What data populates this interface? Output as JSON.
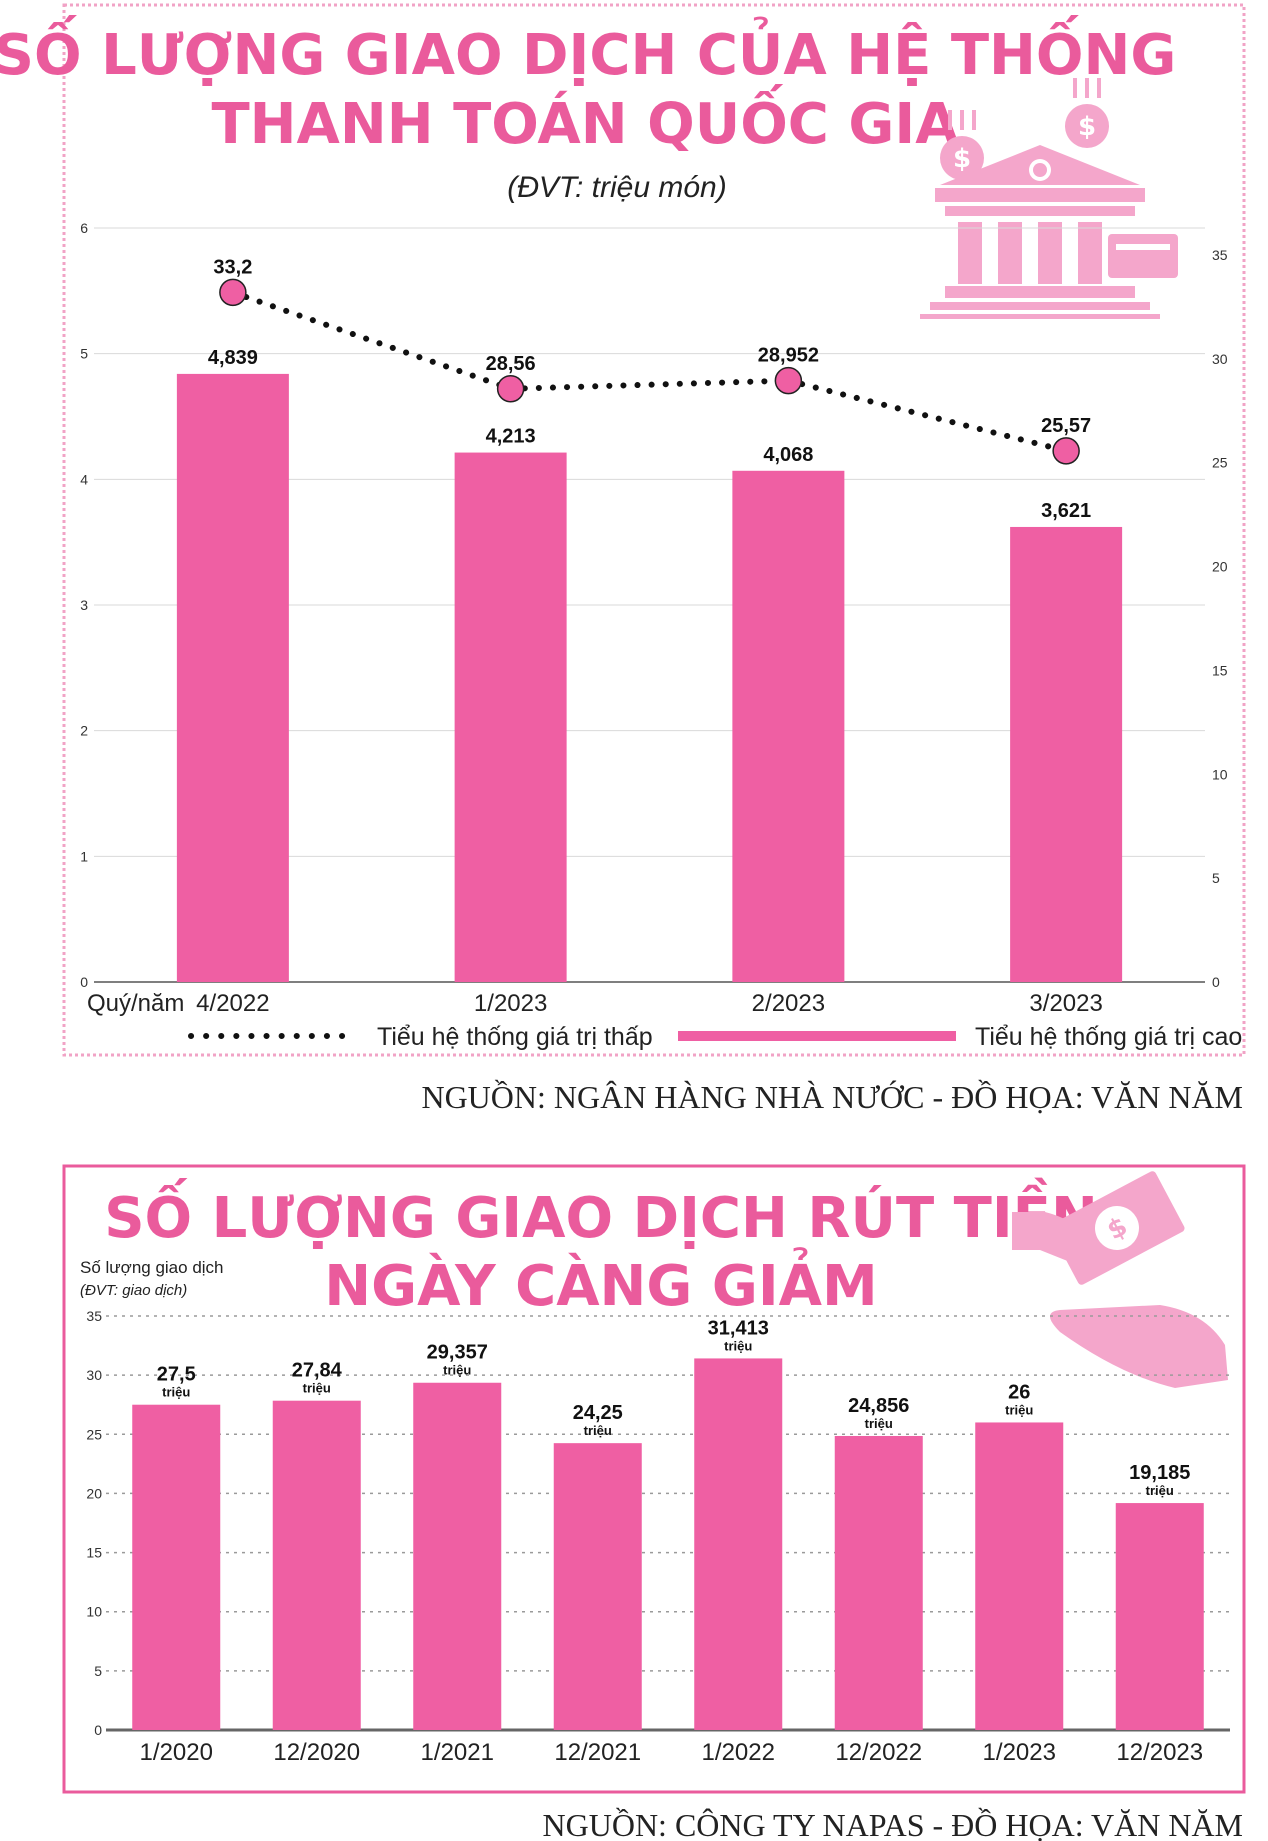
{
  "colors": {
    "pink": "#ef5fa3",
    "title": "#ea5b9c",
    "border": "#f1a3c6",
    "icon": "#f4a6cb"
  },
  "chart1": {
    "title_line1": "SỐ LƯỢNG GIAO DỊCH CỦA HỆ THỐNG",
    "title_line2": "THANH TOÁN QUỐC GIA",
    "unit": "(ĐVT: triệu món)",
    "xlabel": "Quý/năm",
    "legend_low": "Tiểu hệ thống giá trị thấp",
    "legend_high": "Tiểu hệ thống giá trị cao",
    "source": "NGUỒN: NGÂN HÀNG NHÀ NƯỚC - ĐỒ HỌA: VĂN NĂM",
    "icon": "bank-icon"
  },
  "chart2": {
    "title_line1": "SỐ LƯỢNG GIAO DỊCH RÚT TIỀN",
    "title_line2": "NGÀY CÀNG GIẢM",
    "ylabel": "Số lượng giao dịch",
    "unit": "(ĐVT: giao dịch)",
    "source": "NGUỒN: CÔNG TY NAPAS - ĐỒ HỌA: VĂN NĂM",
    "icon": "cash-hand-icon"
  },
  "chart_data": [
    {
      "type": "bar",
      "title": "SỐ LƯỢNG GIAO DỊCH CỦA HỆ THỐNG THANH TOÁN QUỐC GIA",
      "categories": [
        "4/2022",
        "1/2023",
        "2/2023",
        "3/2023"
      ],
      "series": [
        {
          "name": "Tiểu hệ thống giá trị cao",
          "type": "bar",
          "axis": "left",
          "values": [
            4.839,
            4.213,
            4.068,
            3.621
          ],
          "labels": [
            "4,839",
            "4,213",
            "4,068",
            "3,621"
          ]
        },
        {
          "name": "Tiểu hệ thống giá trị thấp",
          "type": "line",
          "style": "dotted",
          "axis": "right",
          "values": [
            33.2,
            28.56,
            28.952,
            25.57
          ],
          "labels": [
            "33,2",
            "28,56",
            "28,952",
            "25,57"
          ]
        }
      ],
      "ylim": [
        0,
        6
      ],
      "y_ticks": [
        "0",
        "1",
        "2",
        "3",
        "4",
        "5",
        "6"
      ],
      "y2lim": [
        0,
        36.3
      ],
      "y2_ticks": [
        "0",
        "5",
        "10",
        "15",
        "20",
        "25",
        "30",
        "35"
      ],
      "xlabel": "Quý/năm",
      "legend": "bottom",
      "grid": true
    },
    {
      "type": "bar",
      "title": "SỐ LƯỢNG GIAO DỊCH RÚT TIỀN NGÀY CÀNG GIẢM",
      "categories": [
        "1/2020",
        "12/2020",
        "1/2021",
        "12/2021",
        "1/2022",
        "12/2022",
        "1/2023",
        "12/2023"
      ],
      "values": [
        27.5,
        27.84,
        29.357,
        24.25,
        31.413,
        24.856,
        26,
        19.185
      ],
      "labels": [
        "27,5",
        "27,84",
        "29,357",
        "24,25",
        "31,413",
        "24,856",
        "26",
        "19,185"
      ],
      "value_unit": "triệu",
      "ylim": [
        0,
        35
      ],
      "y_ticks": [
        "0",
        "5",
        "10",
        "15",
        "20",
        "25",
        "30",
        "35"
      ],
      "ylabel": "Số lượng giao dịch",
      "grid": true
    }
  ]
}
